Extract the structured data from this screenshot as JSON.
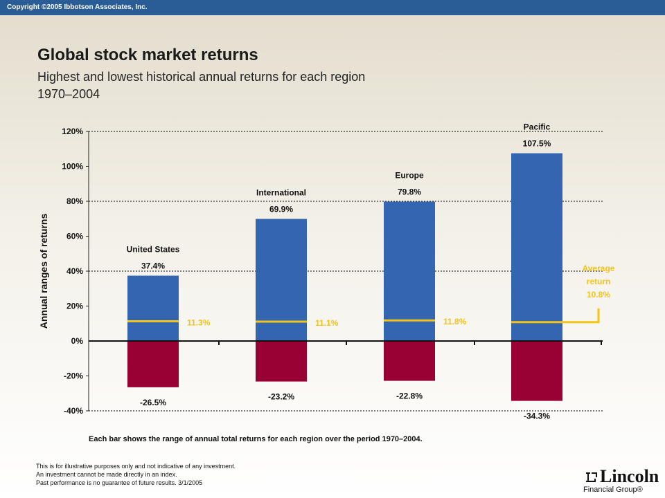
{
  "header": {
    "copyright": "Copyright ©2005 Ibbotson Associates, Inc."
  },
  "title": "Global stock market returns",
  "subtitle_line1": "Highest and lowest historical annual returns for each region",
  "subtitle_line2": "1970–2004",
  "caption": "Each bar shows the range of annual total returns for each region over the period 1970–2004.",
  "disclaimer": [
    "This is for illustrative purposes only and not indicative of any investment.",
    "An investment cannot be made directly in an index.",
    "Past performance is no guarantee of future results. 3/1/2005"
  ],
  "logo": {
    "name": "Lincoln",
    "sub": "Financial Group®"
  },
  "chart_data": {
    "type": "bar",
    "ylabel": "Annual ranges of returns",
    "ylim": [
      -40,
      120
    ],
    "yticks": [
      120,
      100,
      80,
      60,
      40,
      20,
      0,
      -20,
      -40
    ],
    "ytick_labels": [
      "120%",
      "100%",
      "80%",
      "60%",
      "40%",
      "20%",
      "0%",
      "-20%",
      "-40%"
    ],
    "grid": true,
    "categories": [
      "United States",
      "International",
      "Europe",
      "Pacific"
    ],
    "high": [
      37.4,
      69.9,
      79.8,
      107.5
    ],
    "high_labels": [
      "37.4%",
      "69.9%",
      "79.8%",
      "107.5%"
    ],
    "low": [
      -26.5,
      -23.2,
      -22.8,
      -34.3
    ],
    "low_labels": [
      "-26.5%",
      "-23.2%",
      "-22.8%",
      "-34.3%"
    ],
    "average": [
      11.3,
      11.1,
      11.8,
      10.8
    ],
    "average_labels": [
      "11.3%",
      "11.1%",
      "11.8%",
      ""
    ],
    "average_callout": {
      "line1": "Average",
      "line2": "return",
      "value": "10.8%"
    },
    "colors": {
      "high": "#3465b0",
      "low": "#990033",
      "average": "#f2c318",
      "grid": "#333333"
    }
  }
}
